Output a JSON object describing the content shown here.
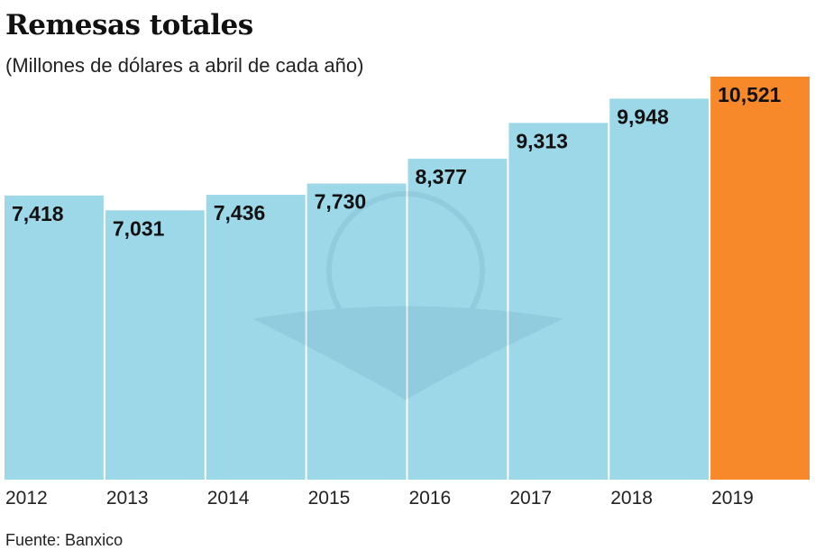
{
  "chart_data": {
    "type": "bar",
    "title": "Remesas totales",
    "subtitle": "(Millones de dólares a abril de cada año)",
    "source": "Fuente: Banxico",
    "categories": [
      "2012",
      "2013",
      "2014",
      "2015",
      "2016",
      "2017",
      "2018",
      "2019"
    ],
    "values": [
      7418,
      7031,
      7436,
      7730,
      8377,
      9313,
      9948,
      10521
    ],
    "data_labels": [
      "7,418",
      "7,031",
      "7,436",
      "7,730",
      "8,377",
      "9,313",
      "9,948",
      "10,521"
    ],
    "ylim": [
      0,
      10521
    ],
    "grid": false,
    "colors": {
      "default": "#9dd8e9",
      "highlight": "#f7892a"
    },
    "highlight_category": "2019"
  }
}
